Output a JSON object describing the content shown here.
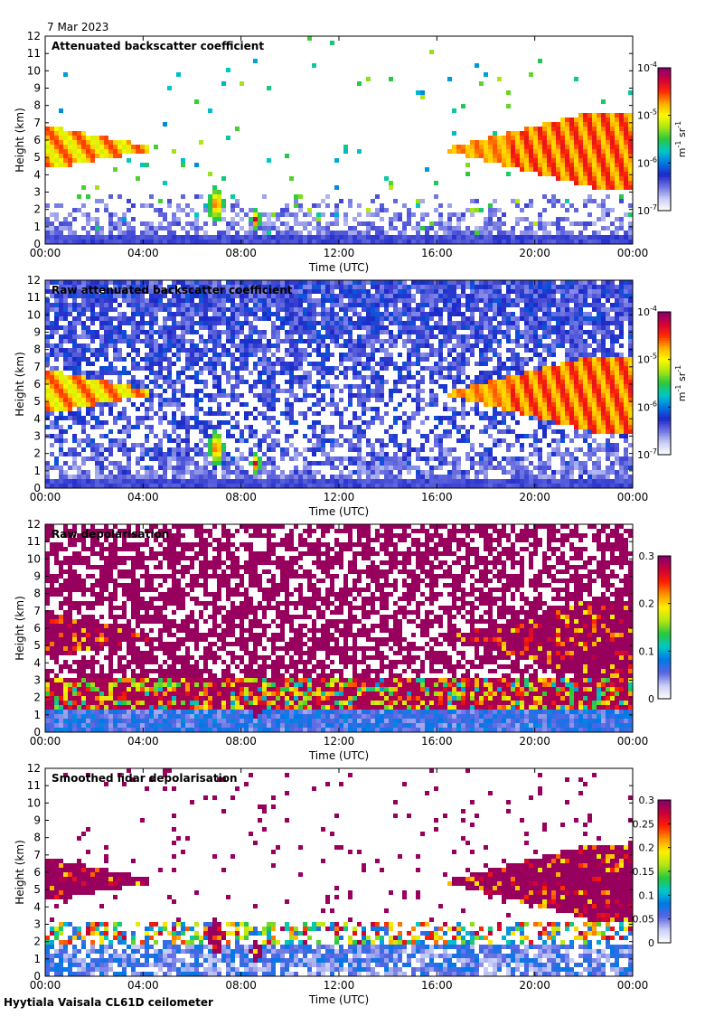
{
  "date_label": "7 Mar 2023",
  "footer": "Hyytiala Vaisala CL61D ceilometer",
  "chart_data": [
    {
      "type": "heatmap",
      "title": "Attenuated backscatter coefficient",
      "xlabel": "Time (UTC)",
      "ylabel": "Height (km)",
      "x_ticks": [
        "00:00",
        "04:00",
        "08:00",
        "12:00",
        "16:00",
        "20:00",
        "00:00"
      ],
      "y_ticks": [
        0,
        1,
        2,
        3,
        4,
        5,
        6,
        7,
        8,
        9,
        10,
        11,
        12
      ],
      "ylim": [
        0,
        12
      ],
      "colorbar": {
        "scale": "log",
        "tick_base": "10",
        "ticks": [
          "-4",
          "-5",
          "-6",
          "-7"
        ],
        "unit_main": "m",
        "unit_exp1": "-1",
        "unit_sr": "sr",
        "unit_exp2": "-1"
      }
    },
    {
      "type": "heatmap",
      "title": "Raw attenuated backscatter coefficient",
      "xlabel": "Time (UTC)",
      "ylabel": "Height (km)",
      "x_ticks": [
        "00:00",
        "04:00",
        "08:00",
        "12:00",
        "16:00",
        "20:00",
        "00:00"
      ],
      "y_ticks": [
        0,
        1,
        2,
        3,
        4,
        5,
        6,
        7,
        8,
        9,
        10,
        11,
        12
      ],
      "ylim": [
        0,
        12
      ],
      "colorbar": {
        "scale": "log",
        "tick_base": "10",
        "ticks": [
          "-4",
          "-5",
          "-6",
          "-7"
        ],
        "unit_main": "m",
        "unit_exp1": "-1",
        "unit_sr": "sr",
        "unit_exp2": "-1"
      }
    },
    {
      "type": "heatmap",
      "title": "Raw depolarisation",
      "xlabel": "Time (UTC)",
      "ylabel": "Height (km)",
      "x_ticks": [
        "00:00",
        "04:00",
        "08:00",
        "12:00",
        "16:00",
        "20:00",
        "00:00"
      ],
      "y_ticks": [
        0,
        1,
        2,
        3,
        4,
        5,
        6,
        7,
        8,
        9,
        10,
        11,
        12
      ],
      "ylim": [
        0,
        12
      ],
      "colorbar": {
        "scale": "linear",
        "ticks": [
          "0.3",
          "0.2",
          "0.1",
          "0"
        ]
      }
    },
    {
      "type": "heatmap",
      "title": "Smoothed lidar depolarisation",
      "xlabel": "Time (UTC)",
      "ylabel": "Height (km)",
      "x_ticks": [
        "00:00",
        "04:00",
        "08:00",
        "12:00",
        "16:00",
        "20:00",
        "00:00"
      ],
      "y_ticks": [
        0,
        1,
        2,
        3,
        4,
        5,
        6,
        7,
        8,
        9,
        10,
        11,
        12
      ],
      "ylim": [
        0,
        12
      ],
      "colorbar": {
        "scale": "linear",
        "ticks": [
          "0.3",
          "0.25",
          "0.2",
          "0.15",
          "0.1",
          "0.05",
          "0"
        ]
      }
    }
  ]
}
